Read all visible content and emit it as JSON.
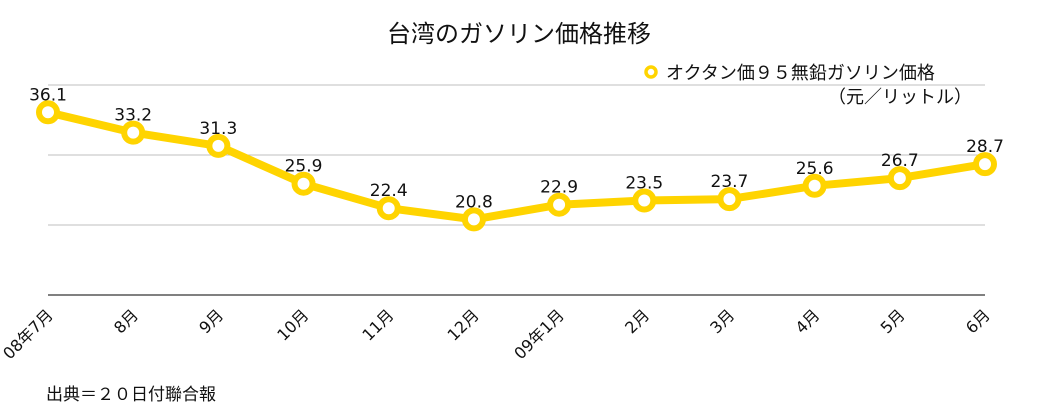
{
  "colors": {
    "series": "#FFD400",
    "marker_fill": "#ffffff",
    "grid": "#bfbfbf",
    "axis": "#000000"
  },
  "chart_data": {
    "type": "line",
    "title": "台湾のガソリン価格推移",
    "x": [
      "08年7月",
      "8月",
      "9月",
      "10月",
      "11月",
      "12月",
      "09年1月",
      "2月",
      "3月",
      "4月",
      "5月",
      "6月"
    ],
    "series": [
      {
        "name_line1": "オクタン価９５無鉛ガソリン価格",
        "name_line2": "（元／リットル）",
        "values": [
          36.1,
          33.2,
          31.3,
          25.9,
          22.4,
          20.8,
          22.9,
          23.5,
          23.7,
          25.6,
          26.7,
          28.7
        ],
        "labels": [
          "36.1",
          "33.2",
          "31.3",
          "25.9",
          "22.4",
          "20.8",
          "22.9",
          "23.5",
          "23.7",
          "25.6",
          "26.7",
          "28.7"
        ]
      }
    ],
    "ylim": [
      10,
      40
    ],
    "gridlines": [
      20,
      30,
      40
    ],
    "grid": true,
    "legend_position": "top-right",
    "source": "出典＝２０日付聯合報"
  }
}
